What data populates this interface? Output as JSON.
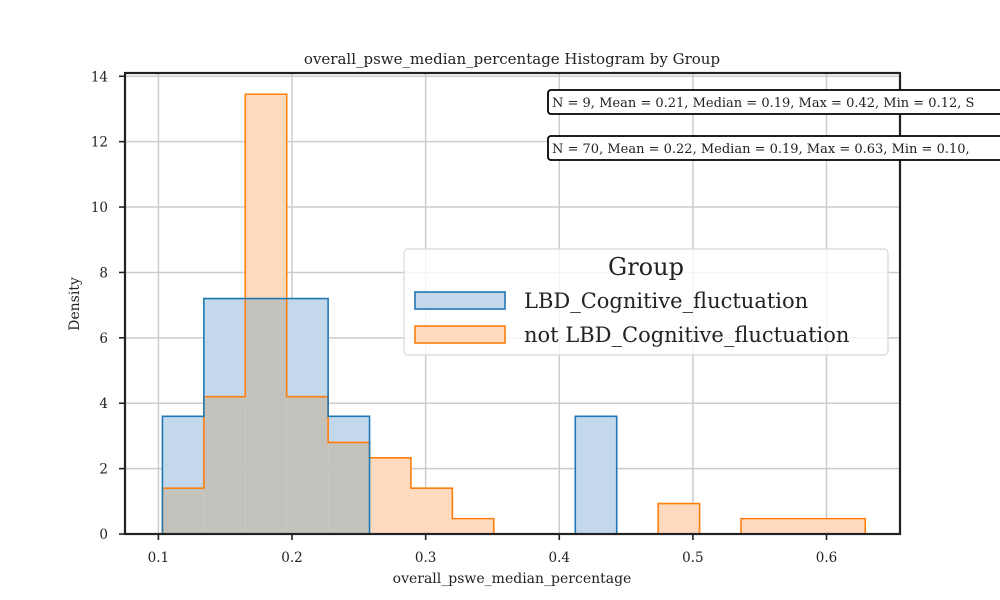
{
  "chart_data": {
    "type": "histogram",
    "title": "overall_pswe_median_percentage Histogram by Group",
    "xlabel": "overall_pswe_median_percentage",
    "ylabel": "Density",
    "xlim": [
      0.075,
      0.655
    ],
    "ylim": [
      0,
      14.1
    ],
    "xticks": [
      0.1,
      0.2,
      0.3,
      0.4,
      0.5,
      0.6
    ],
    "xtick_labels": [
      "0.1",
      "0.2",
      "0.3",
      "0.4",
      "0.5",
      "0.6"
    ],
    "yticks": [
      0,
      2,
      4,
      6,
      8,
      10,
      12,
      14
    ],
    "ytick_labels": [
      "0",
      "2",
      "4",
      "6",
      "8",
      "10",
      "12",
      "14"
    ],
    "grid": true,
    "legend_title": "Group",
    "legend_position": "center-right",
    "bin_edges": [
      0.103,
      0.134,
      0.165,
      0.196,
      0.227,
      0.258,
      0.289,
      0.32,
      0.351,
      0.381,
      0.412,
      0.443,
      0.474,
      0.505,
      0.536,
      0.567,
      0.598,
      0.629
    ],
    "series": [
      {
        "name": "LBD_Cognitive_fluctuation",
        "color": "#1f77b4",
        "fill": "#c3d8ea",
        "values": [
          3.6,
          7.2,
          7.2,
          7.2,
          3.6,
          0,
          0,
          0,
          0,
          0,
          3.6,
          0,
          0,
          0,
          0,
          0,
          0
        ],
        "stats": "N = 9, Mean = 0.21, Median = 0.19, Max = 0.42, Min = 0.12, S"
      },
      {
        "name": "not LBD_Cognitive_fluctuation",
        "color": "#ff7f0e",
        "fill": "#ffdabe",
        "values": [
          1.4,
          4.2,
          13.45,
          4.2,
          2.8,
          2.33,
          1.4,
          0.47,
          0,
          0,
          0,
          0,
          0.93,
          0,
          0.47,
          0.47,
          0.47
        ],
        "stats": "N = 70, Mean = 0.22, Median = 0.19, Max = 0.63, Min = 0.10,"
      }
    ]
  },
  "colors": {
    "overlap": "#c4c2bc",
    "grid": "#cccccc",
    "axis": "#222222"
  }
}
